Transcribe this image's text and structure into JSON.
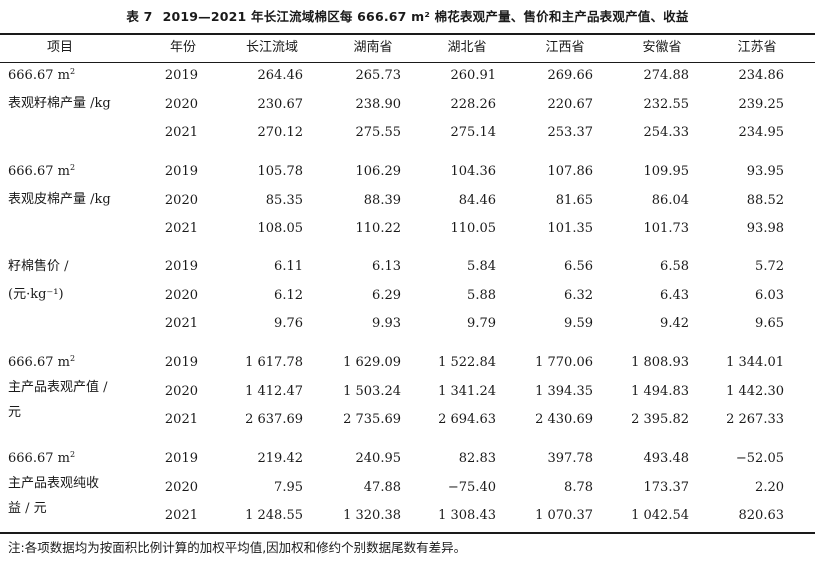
{
  "caption": {
    "number": "表 7",
    "title": "2019—2021 年长江流域棉区每 666.67 m² 棉花表观产量、售价和主产品表观产值、收益"
  },
  "header": [
    "项目",
    "年份",
    "长江流域",
    "湖南省",
    "湖北省",
    "江西省",
    "安徽省",
    "江苏省"
  ],
  "groups": [
    {
      "label_lines": [
        "666.67 m²",
        "表观籽棉产量 /kg"
      ],
      "rows": [
        {
          "year": "2019",
          "values": [
            "264.46",
            "265.73",
            "260.91",
            "269.66",
            "274.88",
            "234.86"
          ]
        },
        {
          "year": "2020",
          "values": [
            "230.67",
            "238.90",
            "228.26",
            "220.67",
            "232.55",
            "239.25"
          ]
        },
        {
          "year": "2021",
          "values": [
            "270.12",
            "275.55",
            "275.14",
            "253.37",
            "254.33",
            "234.95"
          ]
        }
      ]
    },
    {
      "label_lines": [
        "666.67 m²",
        "表观皮棉产量 /kg"
      ],
      "rows": [
        {
          "year": "2019",
          "values": [
            "105.78",
            "106.29",
            "104.36",
            "107.86",
            "109.95",
            "93.95"
          ]
        },
        {
          "year": "2020",
          "values": [
            "85.35",
            "88.39",
            "84.46",
            "81.65",
            "86.04",
            "88.52"
          ]
        },
        {
          "year": "2021",
          "values": [
            "108.05",
            "110.22",
            "110.05",
            "101.35",
            "101.73",
            "93.98"
          ]
        }
      ]
    },
    {
      "label_lines": [
        "籽棉售价 /",
        "(元·kg⁻¹)"
      ],
      "rows": [
        {
          "year": "2019",
          "values": [
            "6.11",
            "6.13",
            "5.84",
            "6.56",
            "6.58",
            "5.72"
          ]
        },
        {
          "year": "2020",
          "values": [
            "6.12",
            "6.29",
            "5.88",
            "6.32",
            "6.43",
            "6.03"
          ]
        },
        {
          "year": "2021",
          "values": [
            "9.76",
            "9.93",
            "9.79",
            "9.59",
            "9.42",
            "9.65"
          ]
        }
      ]
    },
    {
      "label_lines": [
        "666.67 m²",
        "主产品表观产值 /",
        "元"
      ],
      "rows": [
        {
          "year": "2019",
          "values": [
            "1 617.78",
            "1 629.09",
            "1 522.84",
            "1 770.06",
            "1 808.93",
            "1 344.01"
          ]
        },
        {
          "year": "2020",
          "values": [
            "1 412.47",
            "1 503.24",
            "1 341.24",
            "1 394.35",
            "1 494.83",
            "1 442.30"
          ]
        },
        {
          "year": "2021",
          "values": [
            "2 637.69",
            "2 735.69",
            "2 694.63",
            "2 430.69",
            "2 395.82",
            "2 267.33"
          ]
        }
      ]
    },
    {
      "label_lines": [
        "666.67 m²",
        "主产品表观纯收",
        "益 / 元"
      ],
      "rows": [
        {
          "year": "2019",
          "values": [
            "219.42",
            "240.95",
            "82.83",
            "397.78",
            "493.48",
            "−52.05"
          ]
        },
        {
          "year": "2020",
          "values": [
            "7.95",
            "47.88",
            "−75.40",
            "8.78",
            "173.37",
            "2.20"
          ]
        },
        {
          "year": "2021",
          "values": [
            "1 248.55",
            "1 320.38",
            "1 308.43",
            "1 070.37",
            "1 042.54",
            "820.63"
          ]
        }
      ]
    }
  ],
  "note": "注:各项数据均为按面积比例计算的加权平均值,因加权和修约个别数据尾数有差异。"
}
